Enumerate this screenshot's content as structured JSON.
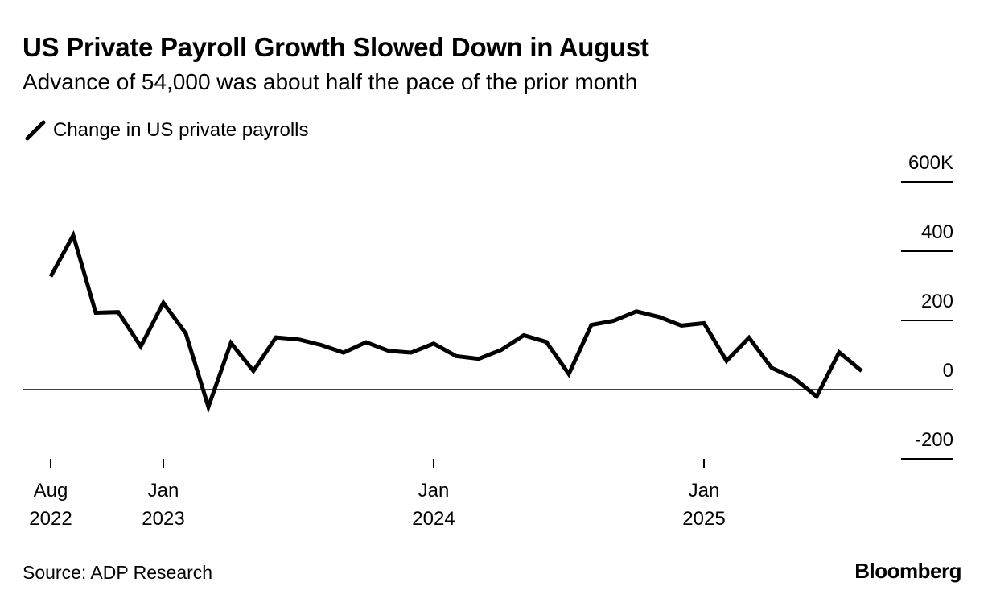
{
  "header": {
    "title": "US Private Payroll Growth Slowed Down in August",
    "subtitle": "Advance of 54,000 was about half the pace of the prior month"
  },
  "legend": {
    "label": "Change in US private payrolls",
    "icon": "line-swatch-icon"
  },
  "footer": {
    "source": "Source: ADP Research",
    "brand": "Bloomberg"
  },
  "colors": {
    "line": "#000000",
    "zero_line": "#000000",
    "background": "#ffffff"
  },
  "chart_data": {
    "type": "line",
    "title": "US Private Payroll Growth Slowed Down in August",
    "subtitle": "Advance of 54,000 was about half the pace of the prior month",
    "xlabel": "",
    "ylabel": "",
    "ylim": [
      -200,
      600
    ],
    "yticks": [
      {
        "value": 600,
        "label": "600K"
      },
      {
        "value": 400,
        "label": "400"
      },
      {
        "value": 200,
        "label": "200"
      },
      {
        "value": 0,
        "label": "0"
      },
      {
        "value": -200,
        "label": "-200"
      }
    ],
    "xticks": [
      {
        "index": 0,
        "line1": "Aug",
        "line2": "2022"
      },
      {
        "index": 5,
        "line1": "Jan",
        "line2": "2023"
      },
      {
        "index": 17,
        "line1": "Jan",
        "line2": "2024"
      },
      {
        "index": 29,
        "line1": "Jan",
        "line2": "2025"
      }
    ],
    "grid": false,
    "legend_position": "top-left",
    "series": [
      {
        "name": "Change in US private payrolls",
        "x": [
          "2022-08",
          "2022-09",
          "2022-10",
          "2022-11",
          "2022-12",
          "2023-01",
          "2023-02",
          "2023-03",
          "2023-04",
          "2023-05",
          "2023-06",
          "2023-07",
          "2023-08",
          "2023-09",
          "2023-10",
          "2023-11",
          "2023-12",
          "2024-01",
          "2024-02",
          "2024-03",
          "2024-04",
          "2024-05",
          "2024-06",
          "2024-07",
          "2024-08",
          "2024-09",
          "2024-10",
          "2024-11",
          "2024-12",
          "2025-01",
          "2025-02",
          "2025-03",
          "2025-04",
          "2025-05",
          "2025-06",
          "2025-07",
          "2025-08"
        ],
        "values": [
          327,
          446,
          222,
          224,
          125,
          251,
          162,
          -50,
          135,
          54,
          151,
          145,
          129,
          107,
          137,
          112,
          107,
          133,
          97,
          89,
          115,
          157,
          138,
          45,
          187,
          199,
          226,
          210,
          185,
          192,
          83,
          150,
          63,
          33,
          -20,
          108,
          54
        ]
      }
    ]
  }
}
